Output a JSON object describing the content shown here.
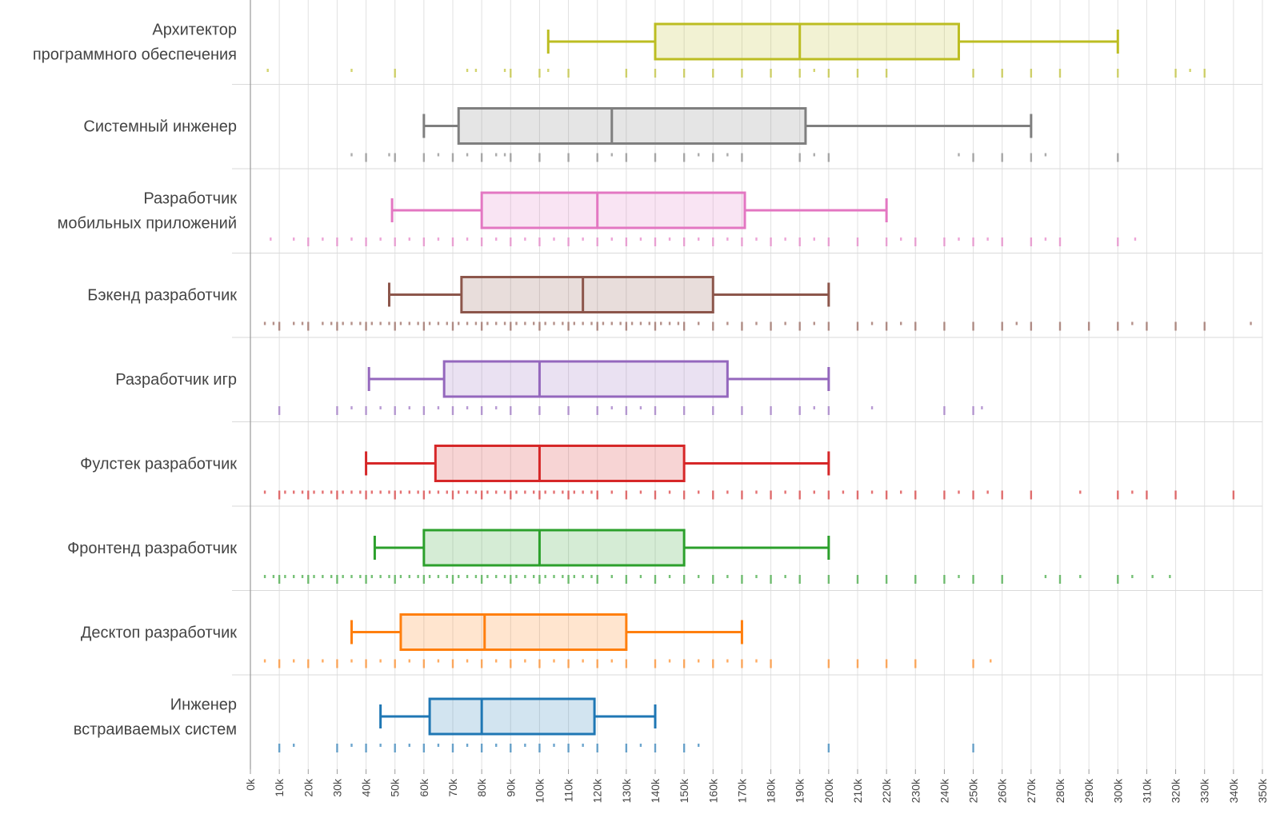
{
  "chart_data": {
    "type": "box",
    "orientation": "horizontal",
    "xlim": [
      0,
      350000
    ],
    "tick_step": 10000,
    "tick_labels": [
      "0k",
      "10k",
      "20k",
      "30k",
      "40k",
      "50k",
      "60k",
      "70k",
      "80k",
      "90k",
      "100k",
      "110k",
      "120k",
      "130k",
      "140k",
      "150k",
      "160k",
      "170k",
      "180k",
      "190k",
      "200k",
      "210k",
      "220k",
      "230k",
      "240k",
      "250k",
      "260k",
      "270k",
      "280k",
      "290k",
      "300k",
      "310k",
      "320k",
      "330k",
      "340k",
      "350k"
    ],
    "grid": true,
    "series": [
      {
        "name": "Архитектор программного обеспечения",
        "label_lines": [
          "Архитектор",
          "программного обеспечения"
        ],
        "color": "#bcbd22",
        "whisker_low": 103000,
        "q1": 140000,
        "median": 190000,
        "q3": 245000,
        "whisker_high": 300000,
        "points": [
          6,
          35,
          50,
          75,
          78,
          88,
          90,
          100,
          103,
          110,
          130,
          140,
          150,
          160,
          170,
          180,
          190,
          195,
          200,
          210,
          220,
          250,
          260,
          270,
          280,
          300,
          320,
          325,
          330
        ]
      },
      {
        "name": "Системный инженер",
        "label_lines": [
          "Системный инженер"
        ],
        "color": "#7f7f7f",
        "whisker_low": 60000,
        "q1": 72000,
        "median": 125000,
        "q3": 192000,
        "whisker_high": 270000,
        "points": [
          35,
          40,
          48,
          50,
          60,
          65,
          70,
          75,
          80,
          85,
          88,
          90,
          100,
          110,
          120,
          125,
          130,
          140,
          150,
          155,
          160,
          165,
          170,
          190,
          195,
          200,
          245,
          250,
          260,
          270,
          275,
          300
        ]
      },
      {
        "name": "Разработчик мобильных приложений",
        "label_lines": [
          "Разработчик",
          "мобильных приложений"
        ],
        "color": "#e377c2",
        "whisker_low": 49000,
        "q1": 80000,
        "median": 120000,
        "q3": 171000,
        "whisker_high": 220000,
        "points": [
          7,
          15,
          20,
          25,
          30,
          35,
          40,
          45,
          50,
          55,
          60,
          65,
          70,
          75,
          80,
          85,
          90,
          95,
          100,
          105,
          110,
          115,
          120,
          125,
          130,
          135,
          140,
          145,
          150,
          155,
          160,
          165,
          170,
          175,
          180,
          185,
          190,
          195,
          200,
          210,
          220,
          225,
          230,
          240,
          245,
          250,
          255,
          260,
          270,
          275,
          280,
          300,
          306
        ]
      },
      {
        "name": "Бэкенд разработчик",
        "label_lines": [
          "Бэкенд разработчик"
        ],
        "color": "#8c564b",
        "whisker_low": 48000,
        "q1": 73000,
        "median": 115000,
        "q3": 160000,
        "whisker_high": 200000,
        "points": [
          5,
          8,
          10,
          15,
          18,
          20,
          25,
          28,
          30,
          32,
          35,
          38,
          40,
          42,
          45,
          48,
          50,
          52,
          55,
          58,
          60,
          62,
          65,
          68,
          70,
          72,
          75,
          78,
          80,
          82,
          85,
          88,
          90,
          92,
          95,
          98,
          100,
          102,
          105,
          108,
          110,
          112,
          115,
          118,
          120,
          122,
          125,
          128,
          130,
          132,
          135,
          138,
          140,
          142,
          145,
          148,
          150,
          155,
          160,
          165,
          170,
          175,
          180,
          185,
          190,
          195,
          200,
          210,
          215,
          220,
          225,
          230,
          240,
          250,
          260,
          265,
          270,
          280,
          290,
          300,
          305,
          310,
          320,
          330,
          346
        ]
      },
      {
        "name": "Разработчик игр",
        "label_lines": [
          "Разработчик игр"
        ],
        "color": "#9467bd",
        "whisker_low": 41000,
        "q1": 67000,
        "median": 100000,
        "q3": 165000,
        "whisker_high": 200000,
        "points": [
          10,
          30,
          35,
          40,
          45,
          50,
          55,
          60,
          65,
          70,
          75,
          80,
          85,
          90,
          100,
          110,
          120,
          125,
          130,
          135,
          140,
          150,
          160,
          170,
          180,
          190,
          195,
          200,
          215,
          240,
          250,
          253
        ]
      },
      {
        "name": "Фулстек разработчик",
        "label_lines": [
          "Фулстек разработчик"
        ],
        "color": "#d62728",
        "whisker_low": 40000,
        "q1": 64000,
        "median": 100000,
        "q3": 150000,
        "whisker_high": 200000,
        "points": [
          5,
          10,
          12,
          15,
          18,
          20,
          22,
          25,
          28,
          30,
          32,
          35,
          38,
          40,
          42,
          45,
          48,
          50,
          52,
          55,
          58,
          60,
          62,
          65,
          68,
          70,
          72,
          75,
          78,
          80,
          82,
          85,
          88,
          90,
          92,
          95,
          98,
          100,
          102,
          105,
          108,
          110,
          112,
          115,
          118,
          120,
          125,
          130,
          135,
          140,
          145,
          150,
          155,
          160,
          165,
          170,
          175,
          180,
          185,
          190,
          195,
          200,
          205,
          210,
          215,
          220,
          225,
          230,
          240,
          245,
          250,
          255,
          260,
          270,
          287,
          300,
          305,
          310,
          320,
          340
        ]
      },
      {
        "name": "Фронтенд разработчик",
        "label_lines": [
          "Фронтенд разработчик"
        ],
        "color": "#2ca02c",
        "whisker_low": 43000,
        "q1": 60000,
        "median": 100000,
        "q3": 150000,
        "whisker_high": 200000,
        "points": [
          5,
          8,
          10,
          12,
          15,
          18,
          20,
          22,
          25,
          28,
          30,
          32,
          35,
          38,
          40,
          42,
          45,
          48,
          50,
          52,
          55,
          58,
          60,
          62,
          65,
          68,
          70,
          72,
          75,
          78,
          80,
          82,
          85,
          88,
          90,
          92,
          95,
          98,
          100,
          102,
          105,
          108,
          110,
          112,
          115,
          118,
          120,
          125,
          130,
          135,
          140,
          145,
          150,
          155,
          160,
          165,
          170,
          175,
          180,
          185,
          190,
          200,
          210,
          220,
          230,
          240,
          245,
          250,
          260,
          275,
          280,
          287,
          300,
          305,
          312,
          318
        ]
      },
      {
        "name": "Десктоп разработчик",
        "label_lines": [
          "Десктоп разработчик"
        ],
        "color": "#ff7f0e",
        "whisker_low": 35000,
        "q1": 52000,
        "median": 81000,
        "q3": 130000,
        "whisker_high": 170000,
        "points": [
          5,
          10,
          15,
          20,
          25,
          30,
          35,
          40,
          45,
          50,
          55,
          60,
          65,
          70,
          75,
          80,
          85,
          90,
          95,
          100,
          105,
          110,
          115,
          120,
          125,
          130,
          140,
          145,
          150,
          155,
          160,
          165,
          170,
          175,
          180,
          200,
          210,
          220,
          230,
          250,
          256
        ]
      },
      {
        "name": "Инженер встраиваемых систем",
        "label_lines": [
          "Инженер",
          "встраиваемых систем"
        ],
        "color": "#1f77b4",
        "whisker_low": 45000,
        "q1": 62000,
        "median": 80000,
        "q3": 119000,
        "whisker_high": 140000,
        "points": [
          10,
          15,
          30,
          35,
          40,
          45,
          50,
          55,
          60,
          65,
          70,
          75,
          80,
          85,
          90,
          95,
          100,
          105,
          110,
          115,
          120,
          130,
          135,
          140,
          150,
          155,
          200,
          250
        ]
      }
    ]
  }
}
